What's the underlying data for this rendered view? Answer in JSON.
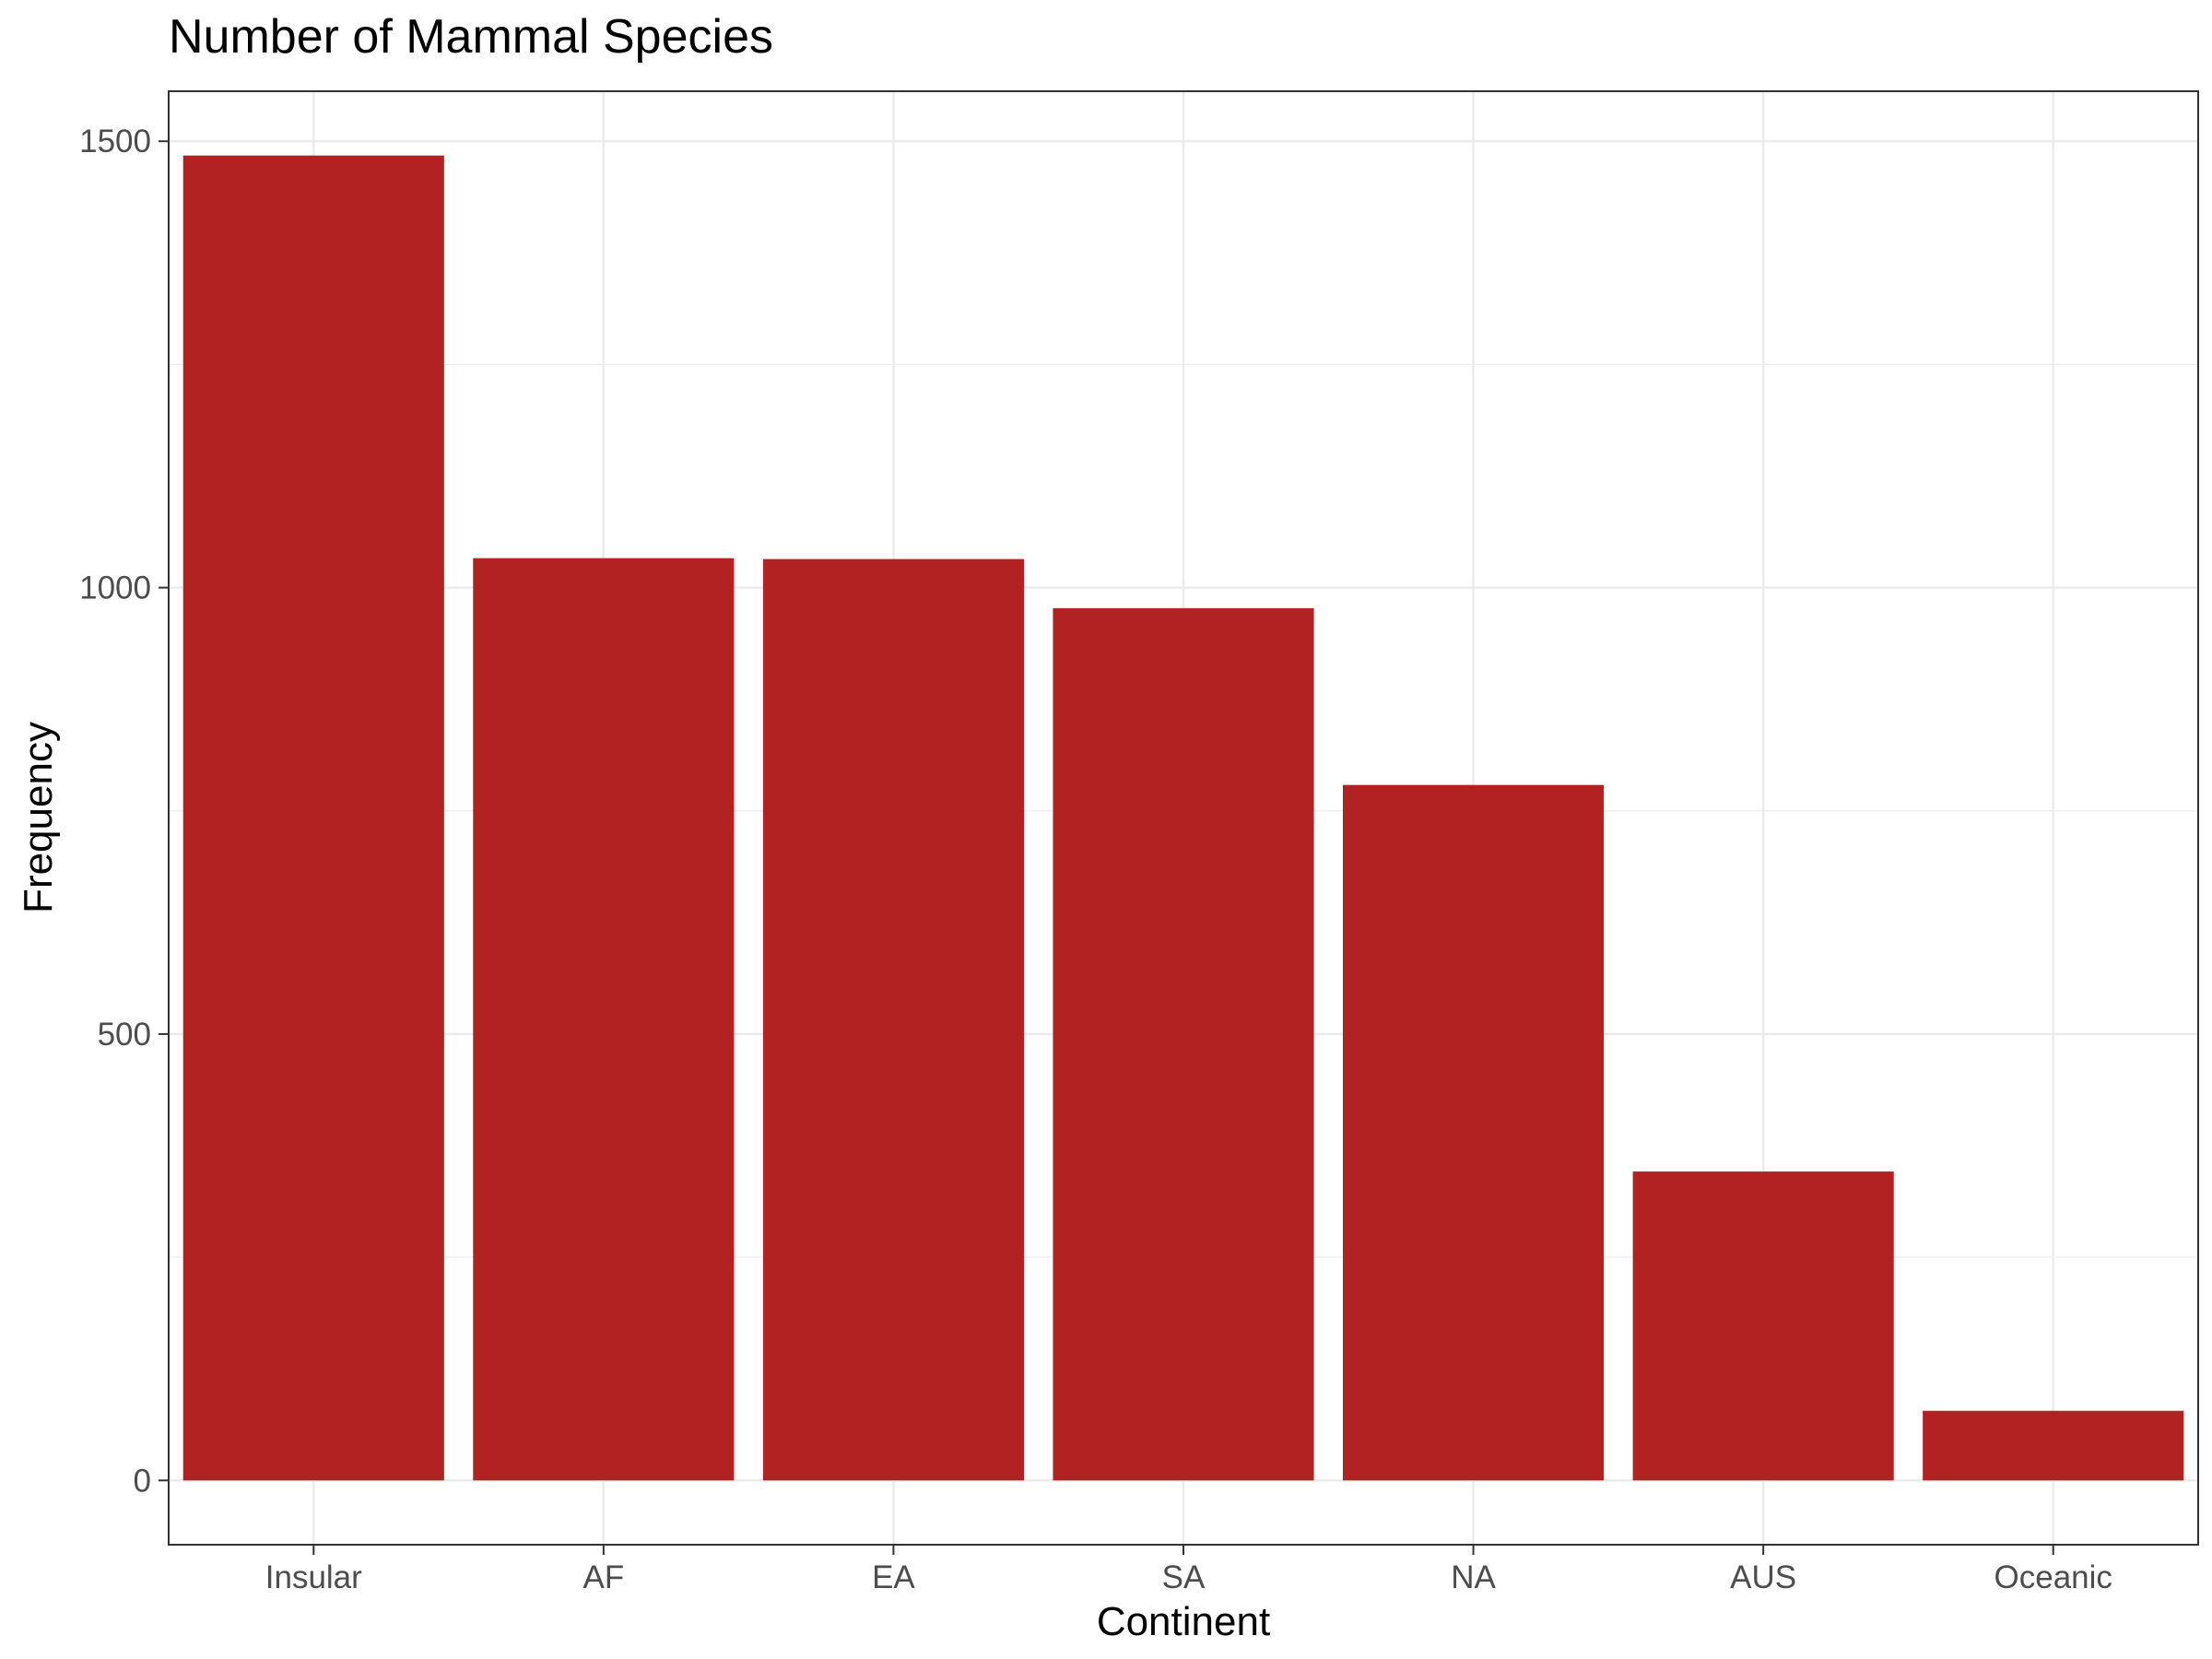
{
  "chart_data": {
    "type": "bar",
    "title": "Number of Mammal Species",
    "xlabel": "Continent",
    "ylabel": "Frequency",
    "categories": [
      "Insular",
      "AF",
      "EA",
      "SA",
      "NA",
      "AUS",
      "Oceanic"
    ],
    "values": [
      1484,
      1033,
      1032,
      977,
      779,
      346,
      78
    ],
    "ylim": [
      -72,
      1556
    ],
    "yticks": [
      0,
      500,
      1000,
      1500
    ],
    "ytick_labels": [
      "0",
      "500",
      "1000",
      "1500"
    ],
    "grid": true,
    "legend": "none",
    "bar_color": "#B22222",
    "grid_color": "#EBEBEB",
    "panel_border_color": "#333333"
  }
}
